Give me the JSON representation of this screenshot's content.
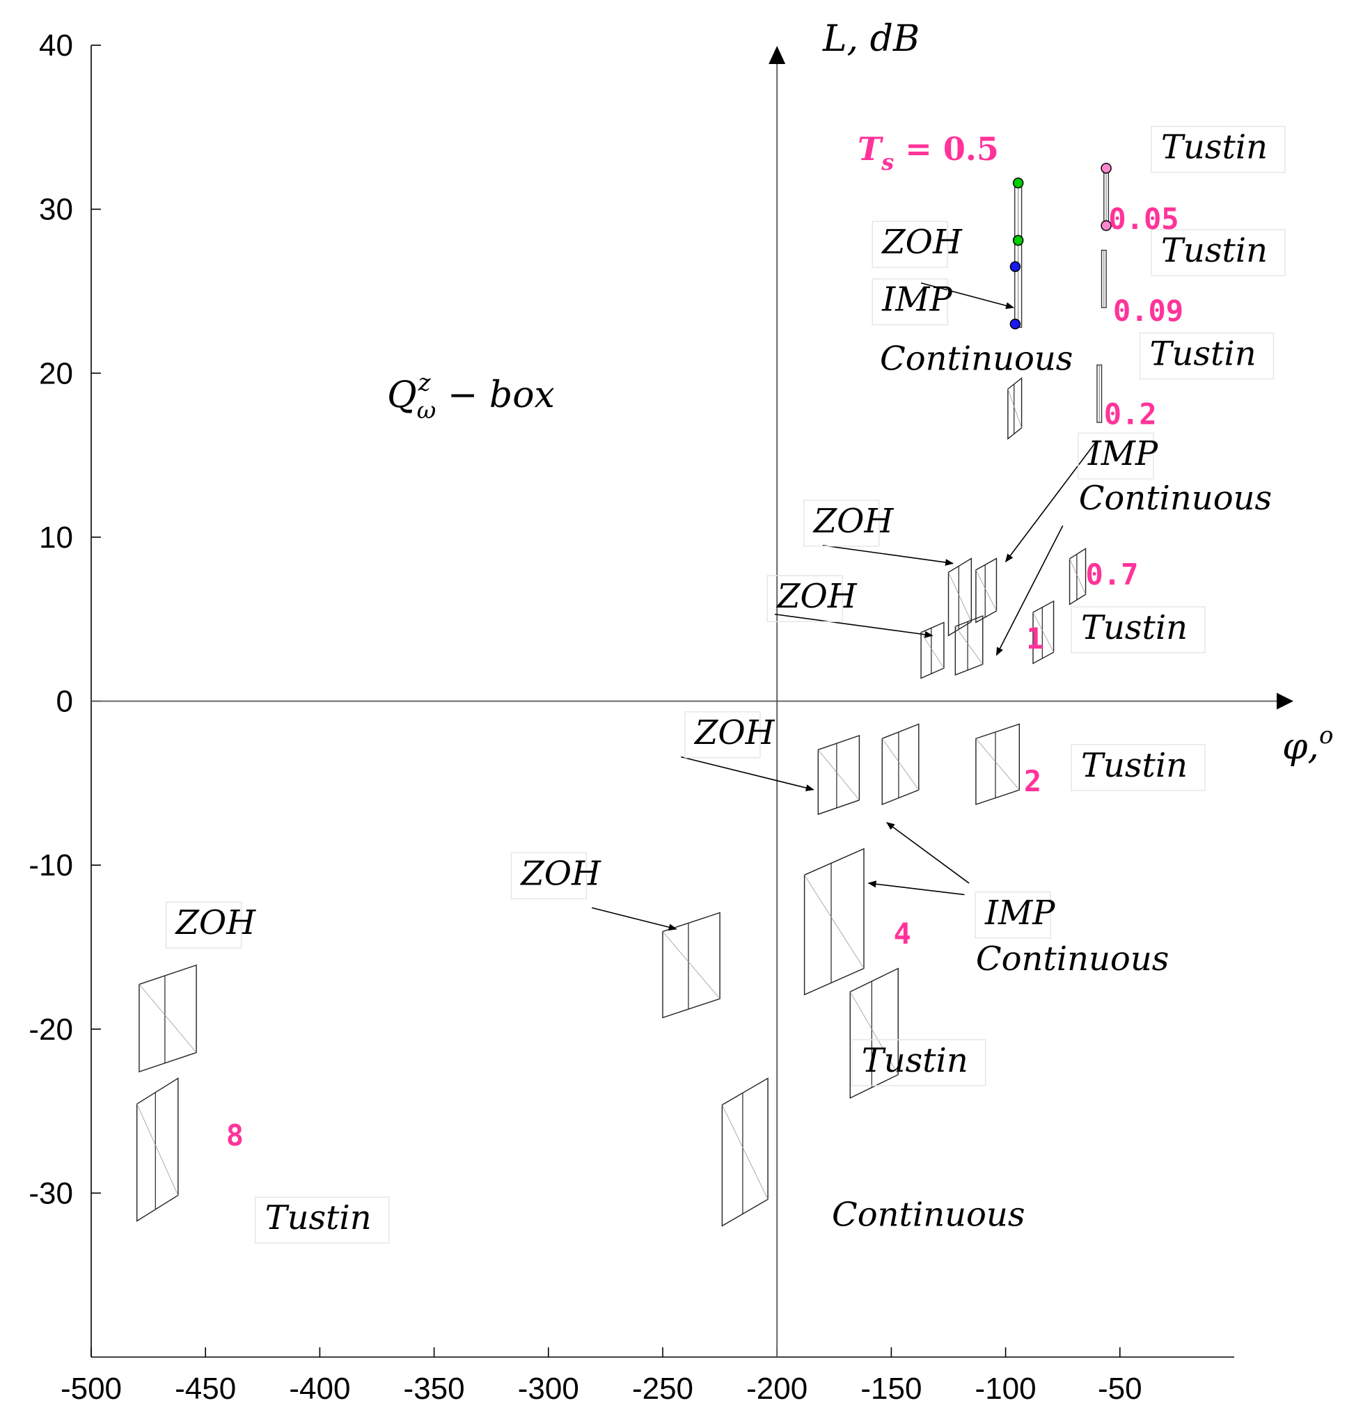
{
  "chart_data": {
    "type": "scatter",
    "title": "Q_ω^z − box",
    "title_parts": {
      "base": "Q",
      "sup": "z",
      "sub": "ω",
      "rest": " − box"
    },
    "xlabel": "φ, o",
    "xlabel_parts": {
      "base": "φ,",
      "sup": "o"
    },
    "ylabel": "L, dB",
    "xlim": [
      -500,
      0
    ],
    "ylim": [
      -40,
      40
    ],
    "xticks": [
      -500,
      -450,
      -400,
      -350,
      -300,
      -250,
      -200,
      -150,
      -100,
      -50
    ],
    "yticks": [
      40,
      30,
      20,
      10,
      0,
      -10,
      -20,
      -30
    ],
    "sampling_label": {
      "var": "T",
      "sub": "s",
      "eq": " = 0.5"
    },
    "accent_color": "#ff3399",
    "sample_times": [
      {
        "text": "0.05",
        "x": -55,
        "y": 28.8
      },
      {
        "text": "0.09",
        "x": -53,
        "y": 23.2
      },
      {
        "text": "0.2",
        "x": -57,
        "y": 16.9
      },
      {
        "text": "0.7",
        "x": -65,
        "y": 7.1
      },
      {
        "text": "1",
        "x": -91,
        "y": 3.2
      },
      {
        "text": "2",
        "x": -92,
        "y": -5.5
      },
      {
        "text": "4",
        "x": -149,
        "y": -14.8
      },
      {
        "text": "8",
        "x": -441,
        "y": -27.1
      }
    ],
    "boxes": [
      {
        "method": "ZOH/IMP",
        "Ts": 0.05,
        "phase": [
          -96,
          -93
        ],
        "L": [
          22.8,
          31.6
        ]
      },
      {
        "method": "Tustin",
        "Ts": 0.05,
        "phase": [
          -57,
          -55
        ],
        "L": [
          28.8,
          32.5
        ]
      },
      {
        "method": "Tustin",
        "Ts": 0.09,
        "phase": [
          -58,
          -56
        ],
        "L": [
          24,
          27.5
        ]
      },
      {
        "method": "ZOH/IMP/Continuous",
        "Ts": 0.2,
        "phase": [
          -99,
          -93
        ],
        "L": [
          16,
          19.7
        ]
      },
      {
        "method": "Tustin",
        "Ts": 0.2,
        "phase": [
          -60,
          -58
        ],
        "L": [
          17,
          20.5
        ]
      },
      {
        "method": "ZOH",
        "Ts": 0.7,
        "phase": [
          -125,
          -115
        ],
        "L": [
          4,
          8.7
        ]
      },
      {
        "method": "IMP/Continuous",
        "Ts": 0.7,
        "phase": [
          -113,
          -104
        ],
        "L": [
          4.8,
          8.7
        ]
      },
      {
        "method": "Tustin",
        "Ts": 0.7,
        "phase": [
          -72,
          -65
        ],
        "L": [
          5.9,
          9.3
        ]
      },
      {
        "method": "ZOH",
        "Ts": 1,
        "phase": [
          -137,
          -127
        ],
        "L": [
          1.4,
          4.8
        ]
      },
      {
        "method": "IMP/Continuous",
        "Ts": 1,
        "phase": [
          -122,
          -110
        ],
        "L": [
          1.6,
          5.2
        ]
      },
      {
        "method": "Tustin",
        "Ts": 1,
        "phase": [
          -88,
          -79
        ],
        "L": [
          2.3,
          6.1
        ]
      },
      {
        "method": "ZOH",
        "Ts": 2,
        "phase": [
          -182,
          -164
        ],
        "L": [
          -6.9,
          -2.1
        ]
      },
      {
        "method": "IMP/Continuous",
        "Ts": 2,
        "phase": [
          -154,
          -138
        ],
        "L": [
          -6.3,
          -1.4
        ]
      },
      {
        "method": "Tustin",
        "Ts": 2,
        "phase": [
          -113,
          -94
        ],
        "L": [
          -6.3,
          -1.4
        ]
      },
      {
        "method": "ZOH",
        "Ts": 4,
        "phase": [
          -250,
          -225
        ],
        "L": [
          -19.3,
          -12.9
        ]
      },
      {
        "method": "IMP/Continuous",
        "Ts": 4,
        "phase": [
          -188,
          -162
        ],
        "L": [
          -17.9,
          -9
        ]
      },
      {
        "method": "Tustin",
        "Ts": 4,
        "phase": [
          -168,
          -147
        ],
        "L": [
          -24.2,
          -16.3
        ]
      },
      {
        "method": "Continuous",
        "Ts": 8,
        "phase": [
          -224,
          -204
        ],
        "L": [
          -32,
          -23
        ]
      },
      {
        "method": "ZOH",
        "Ts": 8,
        "phase": [
          -479,
          -454
        ],
        "L": [
          -22.6,
          -16.1
        ]
      },
      {
        "method": "Tustin",
        "Ts": 8,
        "phase": [
          -480,
          -462
        ],
        "L": [
          -31.7,
          -23
        ]
      }
    ],
    "markers": [
      {
        "x": -94.5,
        "y": 31.6,
        "color": "#00cc00"
      },
      {
        "x": -94.5,
        "y": 28.1,
        "color": "#00cc00"
      },
      {
        "x": -95.8,
        "y": 26.5,
        "color": "#1a1aee"
      },
      {
        "x": -95.8,
        "y": 23,
        "color": "#1a1aee"
      },
      {
        "x": -56,
        "y": 32.5,
        "color": "#ff88cc"
      },
      {
        "x": -56,
        "y": 29,
        "color": "#ff88cc"
      }
    ],
    "labels": [
      {
        "text": "ZOH",
        "x": -154,
        "y": 27.3
      },
      {
        "text": "IMP",
        "x": -154,
        "y": 23.8
      },
      {
        "text": "Continuous",
        "x": -155,
        "y": 20.2
      },
      {
        "text": "Tustin",
        "x": -32,
        "y": 33.1
      },
      {
        "text": "Tustin",
        "x": -32,
        "y": 26.8
      },
      {
        "text": "Tustin",
        "x": -37,
        "y": 20.5
      },
      {
        "text": "IMP",
        "x": -64,
        "y": 14.4
      },
      {
        "text": "Continuous",
        "x": -68,
        "y": 11.7
      },
      {
        "text": "ZOH",
        "x": -184,
        "y": 10.3
      },
      {
        "text": "ZOH",
        "x": -200,
        "y": 5.7
      },
      {
        "text": "Tustin",
        "x": -67,
        "y": 3.8
      },
      {
        "text": "ZOH",
        "x": -236,
        "y": -2.6
      },
      {
        "text": "Tustin",
        "x": -67,
        "y": -4.6
      },
      {
        "text": "ZOH",
        "x": -312,
        "y": -11.2
      },
      {
        "text": "IMP",
        "x": -109,
        "y": -13.6
      },
      {
        "text": "Continuous",
        "x": -113,
        "y": -16.4
      },
      {
        "text": "ZOH",
        "x": -463,
        "y": -14.2
      },
      {
        "text": "Tustin",
        "x": -163,
        "y": -22.6
      },
      {
        "text": "Continuous",
        "x": -176,
        "y": -32
      },
      {
        "text": "Tustin",
        "x": -424,
        "y": -32.2
      }
    ],
    "arrows": [
      {
        "from": [
          -137,
          25.5
        ],
        "to": [
          -96.5,
          24
        ]
      },
      {
        "from": [
          -60,
          15.9
        ],
        "to": [
          -100,
          8.5
        ]
      },
      {
        "from": [
          -180,
          9.5
        ],
        "to": [
          -123,
          8.4
        ]
      },
      {
        "from": [
          -201,
          5.3
        ],
        "to": [
          -132,
          4
        ]
      },
      {
        "from": [
          -75,
          10.7
        ],
        "to": [
          -104,
          2.8
        ]
      },
      {
        "from": [
          -242,
          -3.4
        ],
        "to": [
          -184,
          -5.4
        ]
      },
      {
        "from": [
          -116,
          -11.1
        ],
        "to": [
          -152,
          -7.4
        ]
      },
      {
        "from": [
          -118,
          -11.8
        ],
        "to": [
          -160,
          -11.1
        ]
      },
      {
        "from": [
          -281,
          -12.6
        ],
        "to": [
          -244,
          -13.9
        ]
      }
    ]
  }
}
